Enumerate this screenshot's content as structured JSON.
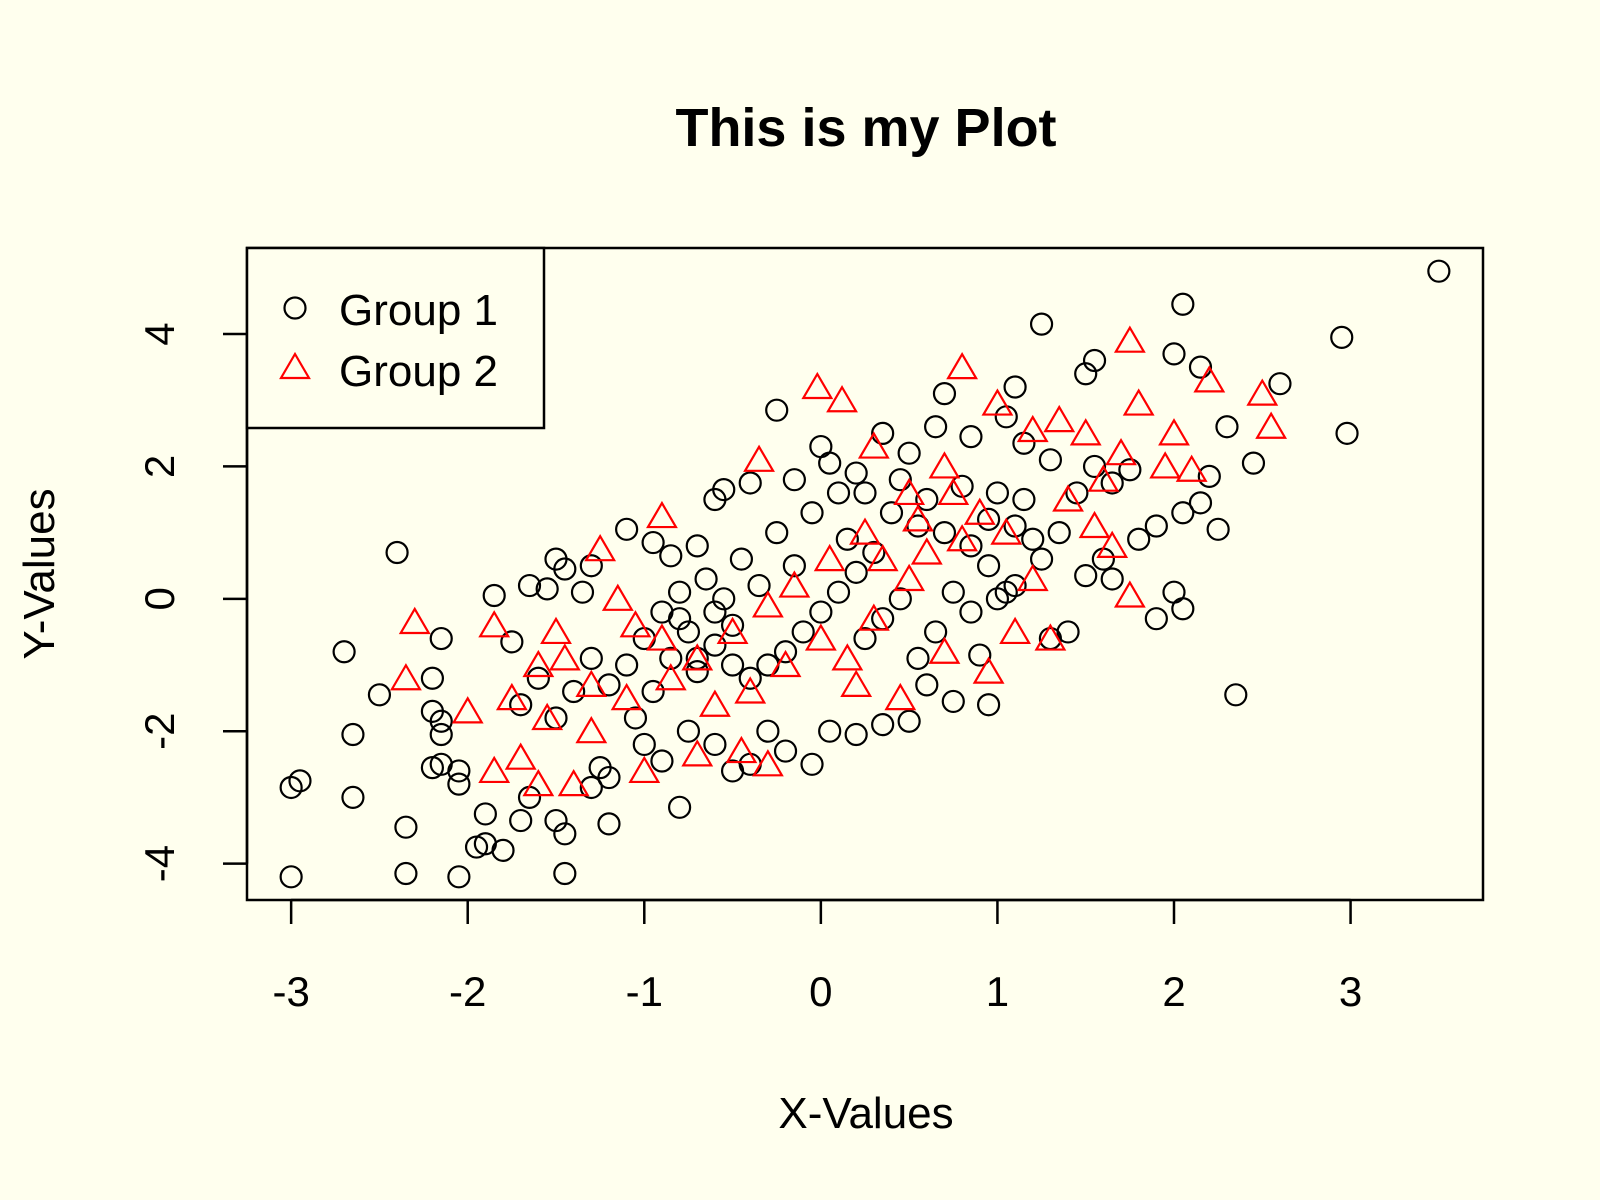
{
  "chart_data": {
    "type": "scatter",
    "title": "This is my Plot",
    "xlabel": "X-Values",
    "ylabel": "Y-Values",
    "xlim": [
      -3.25,
      3.75
    ],
    "ylim": [
      -4.55,
      5.3
    ],
    "x_ticks": [
      -3,
      -2,
      -1,
      0,
      1,
      2,
      3
    ],
    "y_ticks": [
      -4,
      -2,
      0,
      2,
      4
    ],
    "x_tick_labels": [
      "-3",
      "-2",
      "-1",
      "0",
      "1",
      "2",
      "3"
    ],
    "y_tick_labels": [
      "-4",
      "-2",
      "0",
      "2",
      "4"
    ],
    "grid": false,
    "legend_position": "top-left",
    "background": "#ffffee",
    "series": [
      {
        "name": "Group 1",
        "marker": "circle",
        "color": "#000000",
        "points": [
          [
            3.5,
            4.95
          ],
          [
            2.95,
            3.95
          ],
          [
            2.05,
            4.45
          ],
          [
            1.25,
            4.15
          ],
          [
            2.98,
            2.5
          ],
          [
            2.6,
            3.25
          ],
          [
            2.0,
            3.7
          ],
          [
            2.15,
            3.5
          ],
          [
            1.55,
            3.6
          ],
          [
            1.5,
            3.4
          ],
          [
            1.1,
            3.2
          ],
          [
            0.7,
            3.1
          ],
          [
            2.45,
            2.05
          ],
          [
            2.3,
            2.6
          ],
          [
            2.2,
            1.85
          ],
          [
            2.15,
            1.45
          ],
          [
            2.25,
            1.05
          ],
          [
            2.05,
            1.3
          ],
          [
            2.0,
            0.1
          ],
          [
            2.05,
            -0.15
          ],
          [
            1.9,
            -0.3
          ],
          [
            2.35,
            -1.45
          ],
          [
            1.9,
            1.1
          ],
          [
            1.8,
            0.9
          ],
          [
            1.65,
            0.3
          ],
          [
            1.6,
            0.6
          ],
          [
            1.5,
            0.35
          ],
          [
            1.4,
            -0.5
          ],
          [
            1.3,
            -0.6
          ],
          [
            1.1,
            0.2
          ],
          [
            1.0,
            0.0
          ],
          [
            0.9,
            -0.85
          ],
          [
            0.95,
            -1.6
          ],
          [
            0.75,
            -1.55
          ],
          [
            0.6,
            -1.3
          ],
          [
            0.5,
            -1.85
          ],
          [
            0.35,
            -1.9
          ],
          [
            0.2,
            -2.05
          ],
          [
            0.05,
            -2.0
          ],
          [
            -0.05,
            -2.5
          ],
          [
            -0.2,
            -2.3
          ],
          [
            -0.3,
            -2.0
          ],
          [
            -0.4,
            -2.5
          ],
          [
            -0.5,
            -2.6
          ],
          [
            -0.6,
            -2.2
          ],
          [
            -0.75,
            -2.0
          ],
          [
            -0.8,
            -3.15
          ],
          [
            -0.9,
            -2.45
          ],
          [
            -1.0,
            -2.2
          ],
          [
            -1.2,
            -2.7
          ],
          [
            -1.25,
            -2.55
          ],
          [
            -1.3,
            -2.85
          ],
          [
            -1.2,
            -3.4
          ],
          [
            -1.45,
            -3.55
          ],
          [
            -1.5,
            -3.35
          ],
          [
            -1.45,
            -4.15
          ],
          [
            -1.65,
            -3.0
          ],
          [
            -1.7,
            -3.35
          ],
          [
            -1.8,
            -3.8
          ],
          [
            -1.9,
            -3.7
          ],
          [
            -1.95,
            -3.75
          ],
          [
            -1.9,
            -3.25
          ],
          [
            -2.05,
            -2.8
          ],
          [
            -2.05,
            -2.6
          ],
          [
            -2.15,
            -2.5
          ],
          [
            -2.2,
            -2.55
          ],
          [
            -2.15,
            -2.05
          ],
          [
            -2.15,
            -1.85
          ],
          [
            -2.2,
            -1.7
          ],
          [
            -2.2,
            -1.2
          ],
          [
            -2.15,
            -0.6
          ],
          [
            -2.05,
            -4.2
          ],
          [
            -2.35,
            -4.15
          ],
          [
            -2.35,
            -3.45
          ],
          [
            -2.65,
            -3.0
          ],
          [
            -2.95,
            -2.75
          ],
          [
            -3.0,
            -2.85
          ],
          [
            -3.0,
            -4.2
          ],
          [
            -2.65,
            -2.05
          ],
          [
            -2.5,
            -1.45
          ],
          [
            -2.7,
            -0.8
          ],
          [
            -2.4,
            0.7
          ],
          [
            -1.85,
            0.05
          ],
          [
            -1.75,
            -0.65
          ],
          [
            -1.65,
            0.2
          ],
          [
            -1.55,
            0.15
          ],
          [
            -1.5,
            0.6
          ],
          [
            -1.45,
            0.45
          ],
          [
            -1.35,
            0.1
          ],
          [
            -1.3,
            0.5
          ],
          [
            -1.1,
            1.05
          ],
          [
            -0.95,
            0.85
          ],
          [
            -0.85,
            0.65
          ],
          [
            -0.7,
            0.8
          ],
          [
            -0.6,
            1.5
          ],
          [
            -0.55,
            1.65
          ],
          [
            -0.4,
            1.75
          ],
          [
            -0.25,
            2.85
          ],
          [
            -0.15,
            1.8
          ],
          [
            0.0,
            2.3
          ],
          [
            0.05,
            2.05
          ],
          [
            0.35,
            2.5
          ],
          [
            0.5,
            2.2
          ],
          [
            0.65,
            2.6
          ],
          [
            0.85,
            2.45
          ],
          [
            1.05,
            2.75
          ],
          [
            1.15,
            2.35
          ],
          [
            1.3,
            2.1
          ],
          [
            1.55,
            2.0
          ],
          [
            1.65,
            1.75
          ],
          [
            1.75,
            1.95
          ],
          [
            0.25,
            1.6
          ],
          [
            0.4,
            1.3
          ],
          [
            0.55,
            1.1
          ],
          [
            0.7,
            1.0
          ],
          [
            0.85,
            0.8
          ],
          [
            0.95,
            1.2
          ],
          [
            1.15,
            1.5
          ],
          [
            1.2,
            0.9
          ],
          [
            0.3,
            0.7
          ],
          [
            0.2,
            0.4
          ],
          [
            0.1,
            0.1
          ],
          [
            0.0,
            -0.2
          ],
          [
            -0.1,
            -0.5
          ],
          [
            -0.2,
            -0.8
          ],
          [
            -0.3,
            -1.0
          ],
          [
            -0.4,
            -1.2
          ],
          [
            -0.5,
            -0.4
          ],
          [
            -0.6,
            -0.7
          ],
          [
            -0.7,
            -1.1
          ],
          [
            -0.8,
            -0.3
          ],
          [
            -0.9,
            -0.2
          ],
          [
            -1.0,
            -0.6
          ],
          [
            -1.1,
            -1.0
          ],
          [
            -1.2,
            -1.3
          ],
          [
            -1.3,
            -0.9
          ],
          [
            -1.4,
            -1.4
          ],
          [
            -1.5,
            -1.8
          ],
          [
            -1.6,
            -1.2
          ],
          [
            -1.7,
            -1.6
          ],
          [
            -0.65,
            0.3
          ],
          [
            -0.55,
            0.0
          ],
          [
            -0.45,
            0.6
          ],
          [
            -0.35,
            0.2
          ],
          [
            -0.25,
            1.0
          ],
          [
            -0.15,
            0.5
          ],
          [
            -0.05,
            1.3
          ],
          [
            0.15,
            0.9
          ],
          [
            0.25,
            -0.6
          ],
          [
            0.35,
            -0.3
          ],
          [
            0.45,
            0.0
          ],
          [
            0.55,
            -0.9
          ],
          [
            0.65,
            -0.5
          ],
          [
            0.75,
            0.1
          ],
          [
            0.85,
            -0.2
          ],
          [
            0.95,
            0.5
          ],
          [
            1.05,
            0.1
          ],
          [
            1.25,
            0.6
          ],
          [
            1.35,
            1.0
          ],
          [
            1.45,
            1.6
          ],
          [
            -0.75,
            -0.5
          ],
          [
            -0.85,
            -0.9
          ],
          [
            -0.95,
            -1.4
          ],
          [
            -1.05,
            -1.8
          ],
          [
            -0.8,
            0.1
          ],
          [
            -0.6,
            -0.2
          ],
          [
            -0.5,
            -1.0
          ],
          [
            -0.7,
            -0.9
          ],
          [
            0.1,
            1.6
          ],
          [
            0.2,
            1.9
          ],
          [
            0.45,
            1.8
          ],
          [
            0.6,
            1.5
          ],
          [
            0.8,
            1.7
          ],
          [
            1.0,
            1.6
          ],
          [
            1.1,
            1.1
          ]
        ]
      },
      {
        "name": "Group 2",
        "marker": "triangle",
        "color": "#ff0000",
        "points": [
          [
            1.75,
            3.9
          ],
          [
            0.8,
            3.5
          ],
          [
            -0.02,
            3.2
          ],
          [
            0.12,
            3.0
          ],
          [
            2.2,
            3.3
          ],
          [
            2.5,
            3.1
          ],
          [
            2.55,
            2.6
          ],
          [
            1.0,
            2.95
          ],
          [
            1.8,
            2.95
          ],
          [
            1.95,
            2.0
          ],
          [
            2.1,
            1.95
          ],
          [
            2.0,
            2.5
          ],
          [
            1.75,
            0.05
          ],
          [
            -2.3,
            -0.35
          ],
          [
            -2.35,
            -1.2
          ],
          [
            -1.85,
            -0.4
          ],
          [
            -2.0,
            -1.7
          ],
          [
            -1.85,
            -2.6
          ],
          [
            -1.7,
            -2.4
          ],
          [
            -1.6,
            -2.8
          ],
          [
            -1.55,
            -1.8
          ],
          [
            -1.4,
            -2.8
          ],
          [
            -1.3,
            -2.0
          ],
          [
            -1.0,
            -2.6
          ],
          [
            -0.7,
            -2.35
          ],
          [
            -0.45,
            -2.3
          ],
          [
            -0.3,
            -2.5
          ],
          [
            -0.9,
            1.25
          ],
          [
            -0.35,
            2.1
          ],
          [
            0.3,
            2.3
          ],
          [
            0.5,
            1.6
          ],
          [
            0.7,
            2.0
          ],
          [
            1.2,
            2.55
          ],
          [
            1.35,
            2.7
          ],
          [
            1.5,
            2.5
          ],
          [
            1.6,
            1.8
          ],
          [
            1.7,
            2.2
          ],
          [
            -1.25,
            0.75
          ],
          [
            -1.15,
            0.0
          ],
          [
            -1.05,
            -0.4
          ],
          [
            -1.5,
            -0.5
          ],
          [
            -1.45,
            -0.9
          ],
          [
            -1.1,
            -1.5
          ],
          [
            -0.85,
            -1.2
          ],
          [
            -0.6,
            -1.6
          ],
          [
            -0.4,
            -1.4
          ],
          [
            -0.2,
            -1.0
          ],
          [
            0.0,
            -0.6
          ],
          [
            0.15,
            -0.9
          ],
          [
            0.3,
            -0.3
          ],
          [
            0.5,
            0.3
          ],
          [
            0.6,
            0.7
          ],
          [
            0.8,
            0.9
          ],
          [
            0.9,
            1.3
          ],
          [
            1.05,
            1.0
          ],
          [
            1.2,
            0.3
          ],
          [
            1.3,
            -0.6
          ],
          [
            1.1,
            -0.5
          ],
          [
            0.95,
            -1.1
          ],
          [
            0.7,
            -0.8
          ],
          [
            0.45,
            -1.5
          ],
          [
            0.2,
            -1.3
          ],
          [
            0.05,
            0.6
          ],
          [
            -0.15,
            0.2
          ],
          [
            -0.3,
            -0.1
          ],
          [
            -0.5,
            -0.5
          ],
          [
            -0.7,
            -0.9
          ],
          [
            -0.9,
            -0.6
          ],
          [
            -1.3,
            -1.3
          ],
          [
            -1.6,
            -1.0
          ],
          [
            -1.75,
            -1.5
          ],
          [
            0.25,
            1.0
          ],
          [
            0.35,
            0.6
          ],
          [
            0.55,
            1.2
          ],
          [
            0.75,
            1.6
          ],
          [
            1.4,
            1.5
          ],
          [
            1.55,
            1.1
          ],
          [
            1.65,
            0.8
          ]
        ]
      }
    ]
  }
}
